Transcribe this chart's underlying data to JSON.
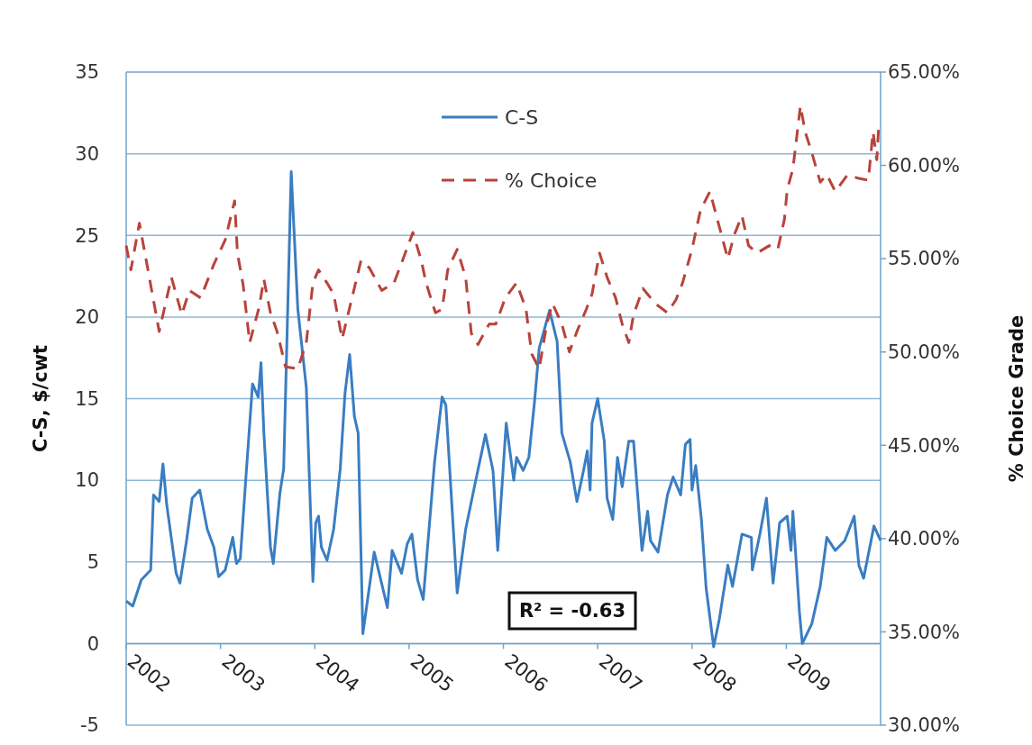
{
  "chart_data": {
    "type": "line",
    "ylabel": "C-S, $/cwt",
    "y2label": "% Choice Grade",
    "xlim": [
      2002,
      2010
    ],
    "xticks": [
      2002,
      2003,
      2004,
      2005,
      2006,
      2007,
      2008,
      2009
    ],
    "ylim": [
      -5,
      35
    ],
    "yticks": [
      -5,
      0,
      5,
      10,
      15,
      20,
      25,
      30,
      35
    ],
    "y2lim": [
      30,
      65
    ],
    "y2ticks": [
      {
        "value": 30,
        "label": "30.00%"
      },
      {
        "value": 35,
        "label": "35.00%"
      },
      {
        "value": 40,
        "label": "40.00%"
      },
      {
        "value": 45,
        "label": "45.00%"
      },
      {
        "value": 50,
        "label": "50.00%"
      },
      {
        "value": 55,
        "label": "55.00%"
      },
      {
        "value": 60,
        "label": "60.00%"
      },
      {
        "value": 65,
        "label": "65.00%"
      }
    ],
    "grid": "y",
    "legend": "top",
    "annotations": [
      "R² = -0.63"
    ],
    "series": [
      {
        "name": "C-S",
        "color": "#3a7dc2",
        "line_style": "solid",
        "x": [
          2002.0,
          2002.07,
          2002.16,
          2002.26,
          2002.29,
          2002.35,
          2002.39,
          2002.43,
          2002.53,
          2002.57,
          2002.64,
          2002.7,
          2002.78,
          2002.86,
          2002.93,
          2002.98,
          2003.05,
          2003.13,
          2003.17,
          2003.21,
          2003.27,
          2003.34,
          2003.4,
          2003.43,
          2003.46,
          2003.53,
          2003.56,
          2003.63,
          2003.67,
          2003.75,
          2003.82,
          2003.91,
          2003.98,
          2004.01,
          2004.04,
          2004.07,
          2004.13,
          2004.2,
          2004.27,
          2004.32,
          2004.37,
          2004.42,
          2004.46,
          2004.51,
          2004.63,
          2004.7,
          2004.77,
          2004.82,
          2004.92,
          2004.98,
          2005.03,
          2005.09,
          2005.15,
          2005.22,
          2005.27,
          2005.35,
          2005.39,
          2005.51,
          2005.6,
          2005.7,
          2005.81,
          2005.89,
          2005.94,
          2006.03,
          2006.11,
          2006.14,
          2006.21,
          2006.27,
          2006.33,
          2006.38,
          2006.49,
          2006.57,
          2006.62,
          2006.71,
          2006.78,
          2006.85,
          2006.89,
          2006.92,
          2006.94,
          2007.0,
          2007.07,
          2007.1,
          2007.16,
          2007.21,
          2007.26,
          2007.33,
          2007.38,
          2007.47,
          2007.53,
          2007.56,
          2007.64,
          2007.74,
          2007.8,
          2007.88,
          2007.93,
          2007.98,
          2008.0,
          2008.04,
          2008.1,
          2008.15,
          2008.23,
          2008.29,
          2008.38,
          2008.43,
          2008.53,
          2008.63,
          2008.64,
          2008.72,
          2008.79,
          2008.86,
          2008.93,
          2009.01,
          2009.05,
          2009.07,
          2009.14,
          2009.17,
          2009.27,
          2009.36,
          2009.43,
          2009.52,
          2009.62,
          2009.72,
          2009.77,
          2009.82,
          2009.93,
          2010.0
        ],
        "values": [
          2.6,
          2.3,
          3.9,
          4.5,
          9.1,
          8.7,
          11.0,
          8.5,
          4.3,
          3.7,
          6.3,
          8.9,
          9.4,
          7.0,
          5.9,
          4.1,
          4.5,
          6.5,
          4.9,
          5.2,
          10.2,
          15.9,
          15.1,
          17.2,
          12.9,
          5.9,
          4.9,
          9.2,
          10.7,
          28.9,
          20.5,
          15.7,
          3.8,
          7.4,
          7.8,
          5.9,
          5.1,
          7.0,
          10.7,
          15.3,
          17.7,
          13.9,
          12.9,
          0.6,
          5.6,
          3.9,
          2.2,
          5.7,
          4.3,
          6.1,
          6.7,
          3.9,
          2.7,
          7.6,
          11.1,
          15.1,
          14.6,
          3.1,
          7.0,
          9.8,
          12.8,
          10.6,
          5.7,
          13.5,
          10.0,
          11.4,
          10.6,
          11.4,
          14.8,
          18.1,
          20.4,
          18.5,
          12.9,
          11.1,
          8.7,
          10.6,
          11.8,
          9.4,
          13.5,
          15.0,
          12.4,
          8.9,
          7.6,
          11.4,
          9.6,
          12.4,
          12.4,
          5.7,
          8.1,
          6.3,
          5.6,
          9.1,
          10.2,
          9.1,
          12.2,
          12.5,
          9.4,
          10.9,
          7.6,
          3.4,
          -0.2,
          1.5,
          4.8,
          3.5,
          6.7,
          6.5,
          4.5,
          6.7,
          8.9,
          3.7,
          7.4,
          7.8,
          5.7,
          8.1,
          1.9,
          0.0,
          1.2,
          3.5,
          6.5,
          5.7,
          6.3,
          7.8,
          4.8,
          4.0,
          7.2,
          6.3
        ]
      },
      {
        "name": "% Choice",
        "color": "#b8433a",
        "line_style": "dashed",
        "axis": "y2",
        "x": [
          2002.0,
          2002.05,
          2002.14,
          2002.22,
          2002.35,
          2002.48,
          2002.59,
          2002.67,
          2002.79,
          2002.93,
          2003.05,
          2003.15,
          2003.18,
          2003.24,
          2003.31,
          2003.41,
          2003.46,
          2003.53,
          2003.6,
          2003.69,
          2003.82,
          2003.91,
          2003.98,
          2004.04,
          2004.13,
          2004.2,
          2004.29,
          2004.39,
          2004.49,
          2004.58,
          2004.71,
          2004.84,
          2004.93,
          2005.04,
          2005.13,
          2005.18,
          2005.28,
          2005.35,
          2005.41,
          2005.51,
          2005.6,
          2005.66,
          2005.73,
          2005.85,
          2005.92,
          2006.02,
          2006.14,
          2006.24,
          2006.3,
          2006.38,
          2006.46,
          2006.52,
          2006.62,
          2006.7,
          2006.78,
          2006.88,
          2006.94,
          2007.02,
          2007.1,
          2007.19,
          2007.26,
          2007.33,
          2007.38,
          2007.48,
          2007.61,
          2007.74,
          2007.83,
          2007.9,
          2008.0,
          2008.09,
          2008.19,
          2008.28,
          2008.38,
          2008.45,
          2008.53,
          2008.6,
          2008.69,
          2008.82,
          2008.91,
          2008.98,
          2009.01,
          2009.07,
          2009.15,
          2009.2,
          2009.27,
          2009.36,
          2009.43,
          2009.52,
          2009.65,
          2009.77,
          2009.87,
          2009.92,
          2009.96,
          2009.98
        ],
        "values": [
          55.7,
          54.4,
          56.9,
          54.7,
          51.1,
          54.0,
          52.0,
          53.3,
          52.9,
          54.7,
          56.0,
          58.1,
          55.3,
          53.6,
          50.5,
          52.4,
          53.9,
          52.1,
          51.1,
          49.2,
          49.1,
          50.5,
          53.7,
          54.4,
          53.7,
          53.1,
          50.7,
          52.8,
          54.9,
          54.5,
          53.3,
          53.7,
          54.9,
          56.4,
          54.9,
          53.7,
          52.1,
          52.3,
          54.4,
          55.5,
          54.0,
          51.0,
          50.4,
          51.5,
          51.5,
          52.9,
          53.7,
          52.3,
          49.9,
          49.1,
          51.5,
          52.6,
          51.5,
          50.0,
          51.1,
          52.3,
          53.1,
          55.3,
          54.0,
          52.9,
          51.5,
          50.5,
          52.0,
          53.4,
          52.6,
          52.1,
          52.8,
          53.7,
          55.5,
          57.6,
          58.6,
          56.9,
          55.0,
          56.3,
          57.3,
          55.7,
          55.3,
          55.7,
          55.5,
          57.1,
          58.7,
          59.8,
          63.2,
          61.8,
          60.7,
          59.1,
          59.5,
          58.6,
          59.5,
          59.3,
          59.2,
          61.8,
          60.3,
          62.1
        ]
      }
    ]
  }
}
